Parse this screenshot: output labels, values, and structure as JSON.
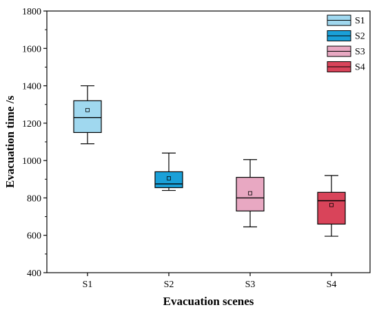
{
  "chart_data": {
    "type": "box",
    "xlabel": "Evacuation scenes",
    "ylabel": "Evacuation time /s",
    "categories": [
      "S1",
      "S2",
      "S3",
      "S4"
    ],
    "ylim": [
      400,
      1800
    ],
    "yticks": [
      400,
      600,
      800,
      1000,
      1200,
      1400,
      1600,
      1800
    ],
    "legend_position": "top-right",
    "grid": false,
    "series": [
      {
        "name": "S1",
        "color": "#a0d8ef",
        "min": 1090,
        "q1": 1150,
        "median": 1230,
        "mean": 1270,
        "q3": 1320,
        "max": 1400
      },
      {
        "name": "S2",
        "color": "#1aa0d8",
        "min": 840,
        "q1": 855,
        "median": 875,
        "mean": 905,
        "q3": 940,
        "max": 1040
      },
      {
        "name": "S3",
        "color": "#e8a8c2",
        "min": 645,
        "q1": 730,
        "median": 800,
        "mean": 825,
        "q3": 910,
        "max": 1005
      },
      {
        "name": "S4",
        "color": "#d9445a",
        "min": 595,
        "q1": 660,
        "median": 785,
        "mean": 762,
        "q3": 830,
        "max": 920
      }
    ]
  }
}
